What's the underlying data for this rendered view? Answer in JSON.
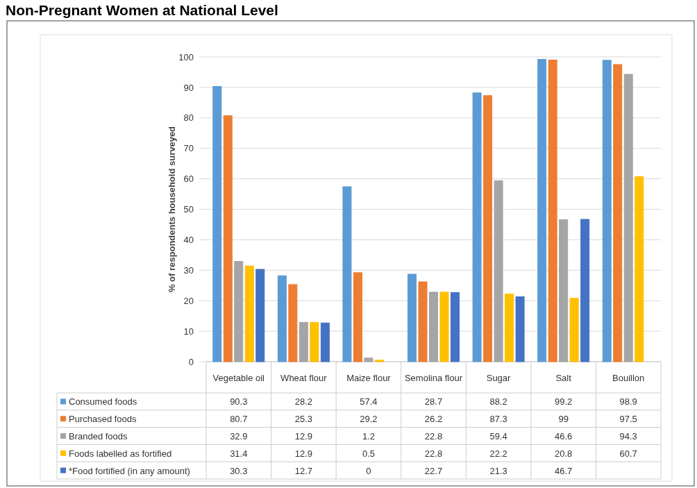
{
  "chart_data": {
    "type": "bar",
    "title": "Non-Pregnant Women at National Level",
    "ylabel": "% of respondents household surveyed",
    "categories": [
      "Vegetable oil",
      "Wheat flour",
      "Maize flour",
      "Semolina flour",
      "Sugar",
      "Salt",
      "Bouillon"
    ],
    "series": [
      {
        "name": "Consumed foods",
        "color": "#5b9bd5",
        "values": [
          90.3,
          28.2,
          57.4,
          28.7,
          88.2,
          99.2,
          98.9
        ]
      },
      {
        "name": "Purchased foods",
        "color": "#ed7d31",
        "values": [
          80.7,
          25.3,
          29.2,
          26.2,
          87.3,
          99,
          97.5
        ]
      },
      {
        "name": "Branded foods",
        "color": "#a5a5a5",
        "values": [
          32.9,
          12.9,
          1.2,
          22.8,
          59.4,
          46.6,
          94.3
        ]
      },
      {
        "name": "Foods labelled as fortified",
        "color": "#ffc000",
        "values": [
          31.4,
          12.9,
          0.5,
          22.8,
          22.2,
          20.8,
          60.7
        ]
      },
      {
        "name": "*Food fortified (in any amount)",
        "color": "#4472c4",
        "values": [
          30.3,
          12.7,
          0,
          22.7,
          21.3,
          46.7,
          null
        ]
      }
    ],
    "ylim": [
      0,
      100
    ],
    "yticks": [
      0,
      10,
      20,
      30,
      40,
      50,
      60,
      70,
      80,
      90,
      100
    ],
    "grid": "y",
    "legend": "bottom",
    "data_labels": true
  }
}
